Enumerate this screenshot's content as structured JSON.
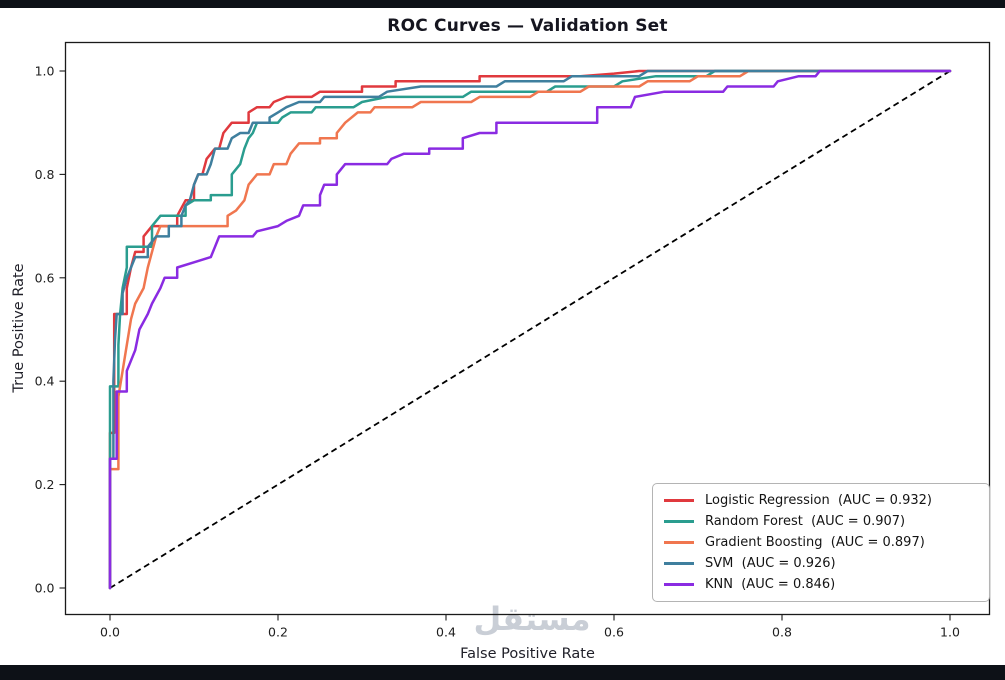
{
  "page": {
    "watermark": "مستقل",
    "frame_bar_color": "#0d1117",
    "background": "#ffffff"
  },
  "chart_data": {
    "type": "line",
    "title": "ROC Curves — Validation Set",
    "xlabel": "False Positive Rate",
    "ylabel": "True Positive Rate",
    "xlim": [
      0,
      1
    ],
    "ylim": [
      0,
      1
    ],
    "xticks": [
      0.0,
      0.2,
      0.4,
      0.6,
      0.8,
      1.0
    ],
    "yticks": [
      0.0,
      0.2,
      0.4,
      0.6,
      0.8,
      1.0
    ],
    "grid": false,
    "axis_color": "#1a1a1a",
    "legend_position": "lower right",
    "diagonal": {
      "from": [
        0,
        0
      ],
      "to": [
        1,
        1
      ],
      "style": "dashed",
      "color": "#000000"
    },
    "series": [
      {
        "name": "Logistic Regression",
        "auc": 0.932,
        "label": "Logistic Regression  (AUC = 0.932)",
        "color": "#e0393e",
        "points": [
          [
            0,
            0
          ],
          [
            0,
            0.3
          ],
          [
            0.005,
            0.3
          ],
          [
            0.005,
            0.53
          ],
          [
            0.02,
            0.53
          ],
          [
            0.02,
            0.58
          ],
          [
            0.025,
            0.62
          ],
          [
            0.03,
            0.65
          ],
          [
            0.04,
            0.65
          ],
          [
            0.04,
            0.68
          ],
          [
            0.05,
            0.7
          ],
          [
            0.08,
            0.7
          ],
          [
            0.08,
            0.72
          ],
          [
            0.09,
            0.75
          ],
          [
            0.1,
            0.75
          ],
          [
            0.1,
            0.78
          ],
          [
            0.105,
            0.8
          ],
          [
            0.11,
            0.8
          ],
          [
            0.115,
            0.83
          ],
          [
            0.125,
            0.85
          ],
          [
            0.13,
            0.85
          ],
          [
            0.135,
            0.88
          ],
          [
            0.145,
            0.9
          ],
          [
            0.165,
            0.9
          ],
          [
            0.165,
            0.92
          ],
          [
            0.175,
            0.93
          ],
          [
            0.19,
            0.93
          ],
          [
            0.195,
            0.94
          ],
          [
            0.21,
            0.95
          ],
          [
            0.24,
            0.95
          ],
          [
            0.25,
            0.96
          ],
          [
            0.3,
            0.96
          ],
          [
            0.3,
            0.97
          ],
          [
            0.34,
            0.97
          ],
          [
            0.34,
            0.98
          ],
          [
            0.44,
            0.98
          ],
          [
            0.44,
            0.99
          ],
          [
            0.56,
            0.99
          ],
          [
            0.6,
            0.995
          ],
          [
            0.63,
            1.0
          ],
          [
            1,
            1
          ]
        ]
      },
      {
        "name": "Random Forest",
        "auc": 0.907,
        "label": "Random Forest  (AUC = 0.907)",
        "color": "#2a9d8f",
        "points": [
          [
            0,
            0
          ],
          [
            0,
            0.39
          ],
          [
            0.01,
            0.39
          ],
          [
            0.01,
            0.47
          ],
          [
            0.012,
            0.53
          ],
          [
            0.015,
            0.58
          ],
          [
            0.02,
            0.62
          ],
          [
            0.02,
            0.66
          ],
          [
            0.05,
            0.66
          ],
          [
            0.05,
            0.7
          ],
          [
            0.06,
            0.72
          ],
          [
            0.09,
            0.72
          ],
          [
            0.09,
            0.74
          ],
          [
            0.1,
            0.75
          ],
          [
            0.12,
            0.75
          ],
          [
            0.12,
            0.76
          ],
          [
            0.145,
            0.76
          ],
          [
            0.145,
            0.8
          ],
          [
            0.155,
            0.82
          ],
          [
            0.16,
            0.85
          ],
          [
            0.165,
            0.87
          ],
          [
            0.17,
            0.88
          ],
          [
            0.175,
            0.9
          ],
          [
            0.2,
            0.9
          ],
          [
            0.205,
            0.91
          ],
          [
            0.215,
            0.92
          ],
          [
            0.24,
            0.92
          ],
          [
            0.245,
            0.93
          ],
          [
            0.29,
            0.93
          ],
          [
            0.3,
            0.94
          ],
          [
            0.33,
            0.95
          ],
          [
            0.42,
            0.95
          ],
          [
            0.43,
            0.96
          ],
          [
            0.52,
            0.96
          ],
          [
            0.53,
            0.97
          ],
          [
            0.6,
            0.97
          ],
          [
            0.61,
            0.98
          ],
          [
            0.65,
            0.99
          ],
          [
            0.71,
            0.99
          ],
          [
            0.72,
            1.0
          ],
          [
            1,
            1
          ]
        ]
      },
      {
        "name": "Gradient Boosting",
        "auc": 0.897,
        "label": "Gradient Boosting  (AUC = 0.897)",
        "color": "#f0764f",
        "points": [
          [
            0,
            0
          ],
          [
            0,
            0.23
          ],
          [
            0.01,
            0.23
          ],
          [
            0.01,
            0.37
          ],
          [
            0.015,
            0.42
          ],
          [
            0.02,
            0.47
          ],
          [
            0.025,
            0.52
          ],
          [
            0.03,
            0.55
          ],
          [
            0.04,
            0.58
          ],
          [
            0.045,
            0.62
          ],
          [
            0.05,
            0.65
          ],
          [
            0.055,
            0.68
          ],
          [
            0.06,
            0.7
          ],
          [
            0.14,
            0.7
          ],
          [
            0.14,
            0.72
          ],
          [
            0.15,
            0.73
          ],
          [
            0.16,
            0.75
          ],
          [
            0.165,
            0.78
          ],
          [
            0.175,
            0.8
          ],
          [
            0.19,
            0.8
          ],
          [
            0.195,
            0.82
          ],
          [
            0.21,
            0.82
          ],
          [
            0.215,
            0.84
          ],
          [
            0.225,
            0.86
          ],
          [
            0.25,
            0.86
          ],
          [
            0.25,
            0.87
          ],
          [
            0.27,
            0.87
          ],
          [
            0.27,
            0.88
          ],
          [
            0.28,
            0.9
          ],
          [
            0.295,
            0.92
          ],
          [
            0.31,
            0.92
          ],
          [
            0.315,
            0.93
          ],
          [
            0.36,
            0.93
          ],
          [
            0.37,
            0.94
          ],
          [
            0.43,
            0.94
          ],
          [
            0.44,
            0.95
          ],
          [
            0.5,
            0.95
          ],
          [
            0.51,
            0.96
          ],
          [
            0.56,
            0.96
          ],
          [
            0.57,
            0.97
          ],
          [
            0.63,
            0.97
          ],
          [
            0.64,
            0.98
          ],
          [
            0.69,
            0.98
          ],
          [
            0.7,
            0.99
          ],
          [
            0.75,
            0.99
          ],
          [
            0.76,
            1.0
          ],
          [
            1,
            1
          ]
        ]
      },
      {
        "name": "SVM",
        "auc": 0.926,
        "label": "SVM  (AUC = 0.926)",
        "color": "#3f7f9e",
        "points": [
          [
            0,
            0
          ],
          [
            0,
            0.25
          ],
          [
            0.004,
            0.25
          ],
          [
            0.004,
            0.4
          ],
          [
            0.006,
            0.48
          ],
          [
            0.008,
            0.53
          ],
          [
            0.015,
            0.53
          ],
          [
            0.015,
            0.57
          ],
          [
            0.02,
            0.6
          ],
          [
            0.025,
            0.62
          ],
          [
            0.03,
            0.64
          ],
          [
            0.045,
            0.64
          ],
          [
            0.045,
            0.66
          ],
          [
            0.055,
            0.68
          ],
          [
            0.07,
            0.68
          ],
          [
            0.07,
            0.7
          ],
          [
            0.085,
            0.7
          ],
          [
            0.085,
            0.72
          ],
          [
            0.09,
            0.74
          ],
          [
            0.095,
            0.75
          ],
          [
            0.1,
            0.78
          ],
          [
            0.105,
            0.8
          ],
          [
            0.115,
            0.8
          ],
          [
            0.12,
            0.82
          ],
          [
            0.125,
            0.85
          ],
          [
            0.14,
            0.85
          ],
          [
            0.145,
            0.87
          ],
          [
            0.155,
            0.88
          ],
          [
            0.165,
            0.88
          ],
          [
            0.17,
            0.9
          ],
          [
            0.19,
            0.9
          ],
          [
            0.19,
            0.91
          ],
          [
            0.2,
            0.92
          ],
          [
            0.21,
            0.93
          ],
          [
            0.225,
            0.94
          ],
          [
            0.25,
            0.94
          ],
          [
            0.255,
            0.95
          ],
          [
            0.32,
            0.95
          ],
          [
            0.33,
            0.96
          ],
          [
            0.37,
            0.97
          ],
          [
            0.46,
            0.97
          ],
          [
            0.47,
            0.98
          ],
          [
            0.54,
            0.98
          ],
          [
            0.55,
            0.99
          ],
          [
            0.63,
            0.99
          ],
          [
            0.64,
            1.0
          ],
          [
            1,
            1
          ]
        ]
      },
      {
        "name": "KNN",
        "auc": 0.846,
        "label": "KNN  (AUC = 0.846)",
        "color": "#8a2be2",
        "points": [
          [
            0,
            0
          ],
          [
            0,
            0.25
          ],
          [
            0.008,
            0.25
          ],
          [
            0.008,
            0.38
          ],
          [
            0.02,
            0.38
          ],
          [
            0.02,
            0.42
          ],
          [
            0.03,
            0.46
          ],
          [
            0.035,
            0.5
          ],
          [
            0.045,
            0.53
          ],
          [
            0.05,
            0.55
          ],
          [
            0.06,
            0.58
          ],
          [
            0.065,
            0.6
          ],
          [
            0.08,
            0.6
          ],
          [
            0.08,
            0.62
          ],
          [
            0.1,
            0.63
          ],
          [
            0.12,
            0.64
          ],
          [
            0.125,
            0.66
          ],
          [
            0.13,
            0.68
          ],
          [
            0.17,
            0.68
          ],
          [
            0.175,
            0.69
          ],
          [
            0.2,
            0.7
          ],
          [
            0.21,
            0.71
          ],
          [
            0.225,
            0.72
          ],
          [
            0.23,
            0.74
          ],
          [
            0.25,
            0.74
          ],
          [
            0.25,
            0.76
          ],
          [
            0.255,
            0.78
          ],
          [
            0.27,
            0.78
          ],
          [
            0.27,
            0.8
          ],
          [
            0.28,
            0.82
          ],
          [
            0.33,
            0.82
          ],
          [
            0.335,
            0.83
          ],
          [
            0.35,
            0.84
          ],
          [
            0.38,
            0.84
          ],
          [
            0.38,
            0.85
          ],
          [
            0.42,
            0.85
          ],
          [
            0.42,
            0.87
          ],
          [
            0.44,
            0.88
          ],
          [
            0.46,
            0.88
          ],
          [
            0.46,
            0.9
          ],
          [
            0.58,
            0.9
          ],
          [
            0.58,
            0.93
          ],
          [
            0.62,
            0.93
          ],
          [
            0.625,
            0.95
          ],
          [
            0.66,
            0.96
          ],
          [
            0.73,
            0.96
          ],
          [
            0.735,
            0.97
          ],
          [
            0.79,
            0.97
          ],
          [
            0.795,
            0.98
          ],
          [
            0.82,
            0.99
          ],
          [
            0.84,
            0.99
          ],
          [
            0.845,
            1.0
          ],
          [
            1,
            1
          ]
        ]
      }
    ]
  }
}
